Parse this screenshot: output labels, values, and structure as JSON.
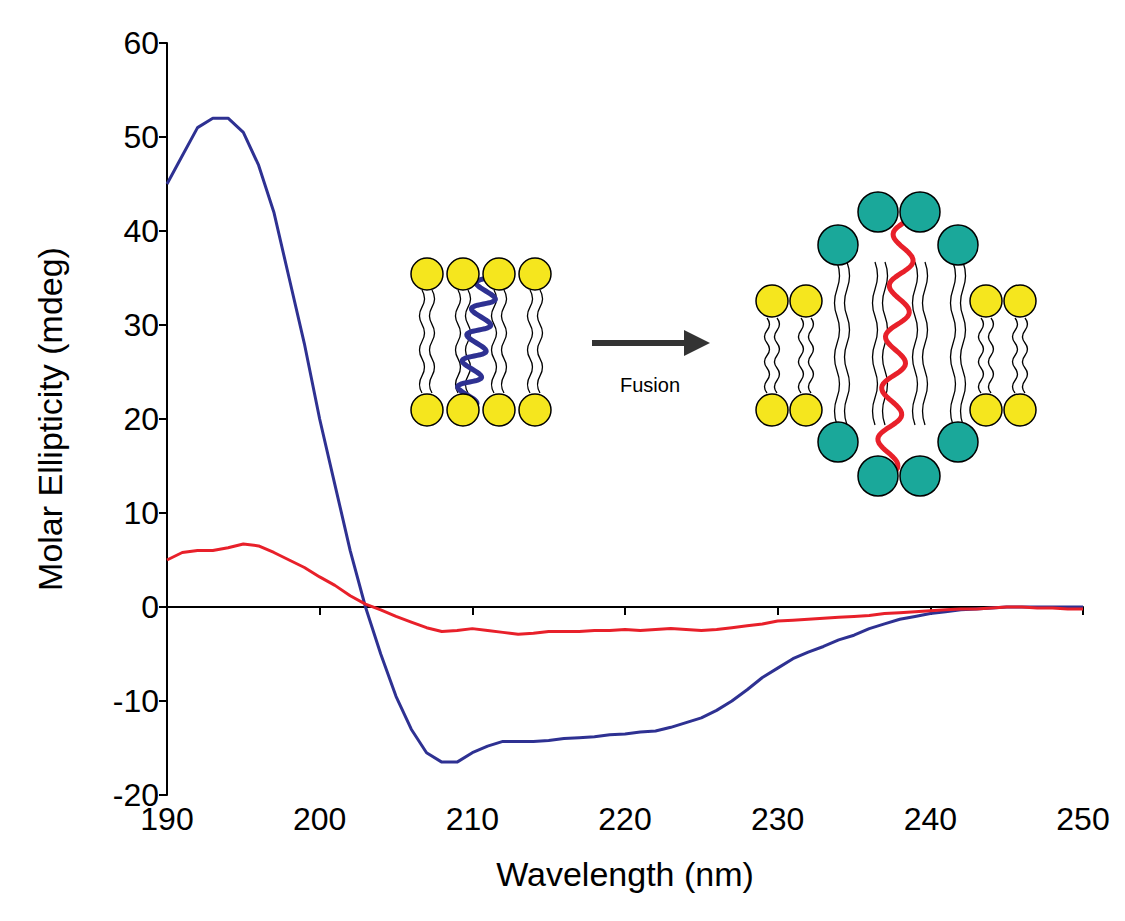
{
  "chart_data": {
    "type": "line",
    "x_label": "Wavelength (nm)",
    "y_label": "Molar Ellipticity (mdeg)",
    "annotation": "Fusion",
    "x": [
      190,
      191,
      192,
      193,
      194,
      195,
      196,
      197,
      198,
      199,
      200,
      201,
      202,
      203,
      204,
      205,
      206,
      207,
      208,
      209,
      210,
      211,
      212,
      213,
      214,
      215,
      216,
      217,
      218,
      219,
      220,
      221,
      222,
      223,
      224,
      225,
      226,
      227,
      228,
      229,
      230,
      231,
      232,
      233,
      234,
      235,
      236,
      237,
      238,
      239,
      240,
      241,
      242,
      243,
      244,
      245,
      246,
      247,
      248,
      249,
      250
    ],
    "series": [
      {
        "color": "#2e3192",
        "line_style": "solid",
        "values": [
          45,
          48,
          51,
          52,
          52,
          50.5,
          47,
          42,
          35,
          28,
          20,
          13,
          6,
          0,
          -5,
          -9.5,
          -13,
          -15.5,
          -16.5,
          -16.5,
          -15.5,
          -14.8,
          -14.3,
          -14.3,
          -14.3,
          -14.2,
          -14,
          -13.9,
          -13.8,
          -13.6,
          -13.5,
          -13.3,
          -13.2,
          -12.8,
          -12.3,
          -11.8,
          -11,
          -10,
          -8.8,
          -7.5,
          -6.5,
          -5.5,
          -4.8,
          -4.2,
          -3.5,
          -3,
          -2.3,
          -1.8,
          -1.3,
          -1,
          -0.7,
          -0.5,
          -0.3,
          -0.2,
          -0.1,
          0,
          0,
          0,
          0,
          0,
          0
        ]
      },
      {
        "color": "#e8202a",
        "line_style": "solid",
        "values": [
          5,
          5.8,
          6,
          6,
          6.3,
          6.7,
          6.5,
          5.8,
          5,
          4.2,
          3.2,
          2.3,
          1.2,
          0.3,
          -0.3,
          -1,
          -1.6,
          -2.2,
          -2.6,
          -2.5,
          -2.3,
          -2.5,
          -2.7,
          -2.9,
          -2.8,
          -2.6,
          -2.6,
          -2.6,
          -2.5,
          -2.5,
          -2.4,
          -2.5,
          -2.4,
          -2.3,
          -2.4,
          -2.5,
          -2.4,
          -2.2,
          -2,
          -1.8,
          -1.5,
          -1.4,
          -1.3,
          -1.2,
          -1.1,
          -1,
          -0.9,
          -0.7,
          -0.6,
          -0.5,
          -0.4,
          -0.3,
          -0.2,
          -0.2,
          -0.1,
          0,
          0,
          -0.1,
          -0.1,
          -0.2,
          -0.2
        ]
      }
    ],
    "xlim": [
      190,
      250
    ],
    "xticks": [
      190,
      200,
      210,
      220,
      230,
      240,
      250
    ],
    "ylim": [
      -20,
      60
    ],
    "yticks": [
      -20,
      -10,
      0,
      10,
      20,
      30,
      40,
      50,
      60
    ],
    "grid": false
  }
}
